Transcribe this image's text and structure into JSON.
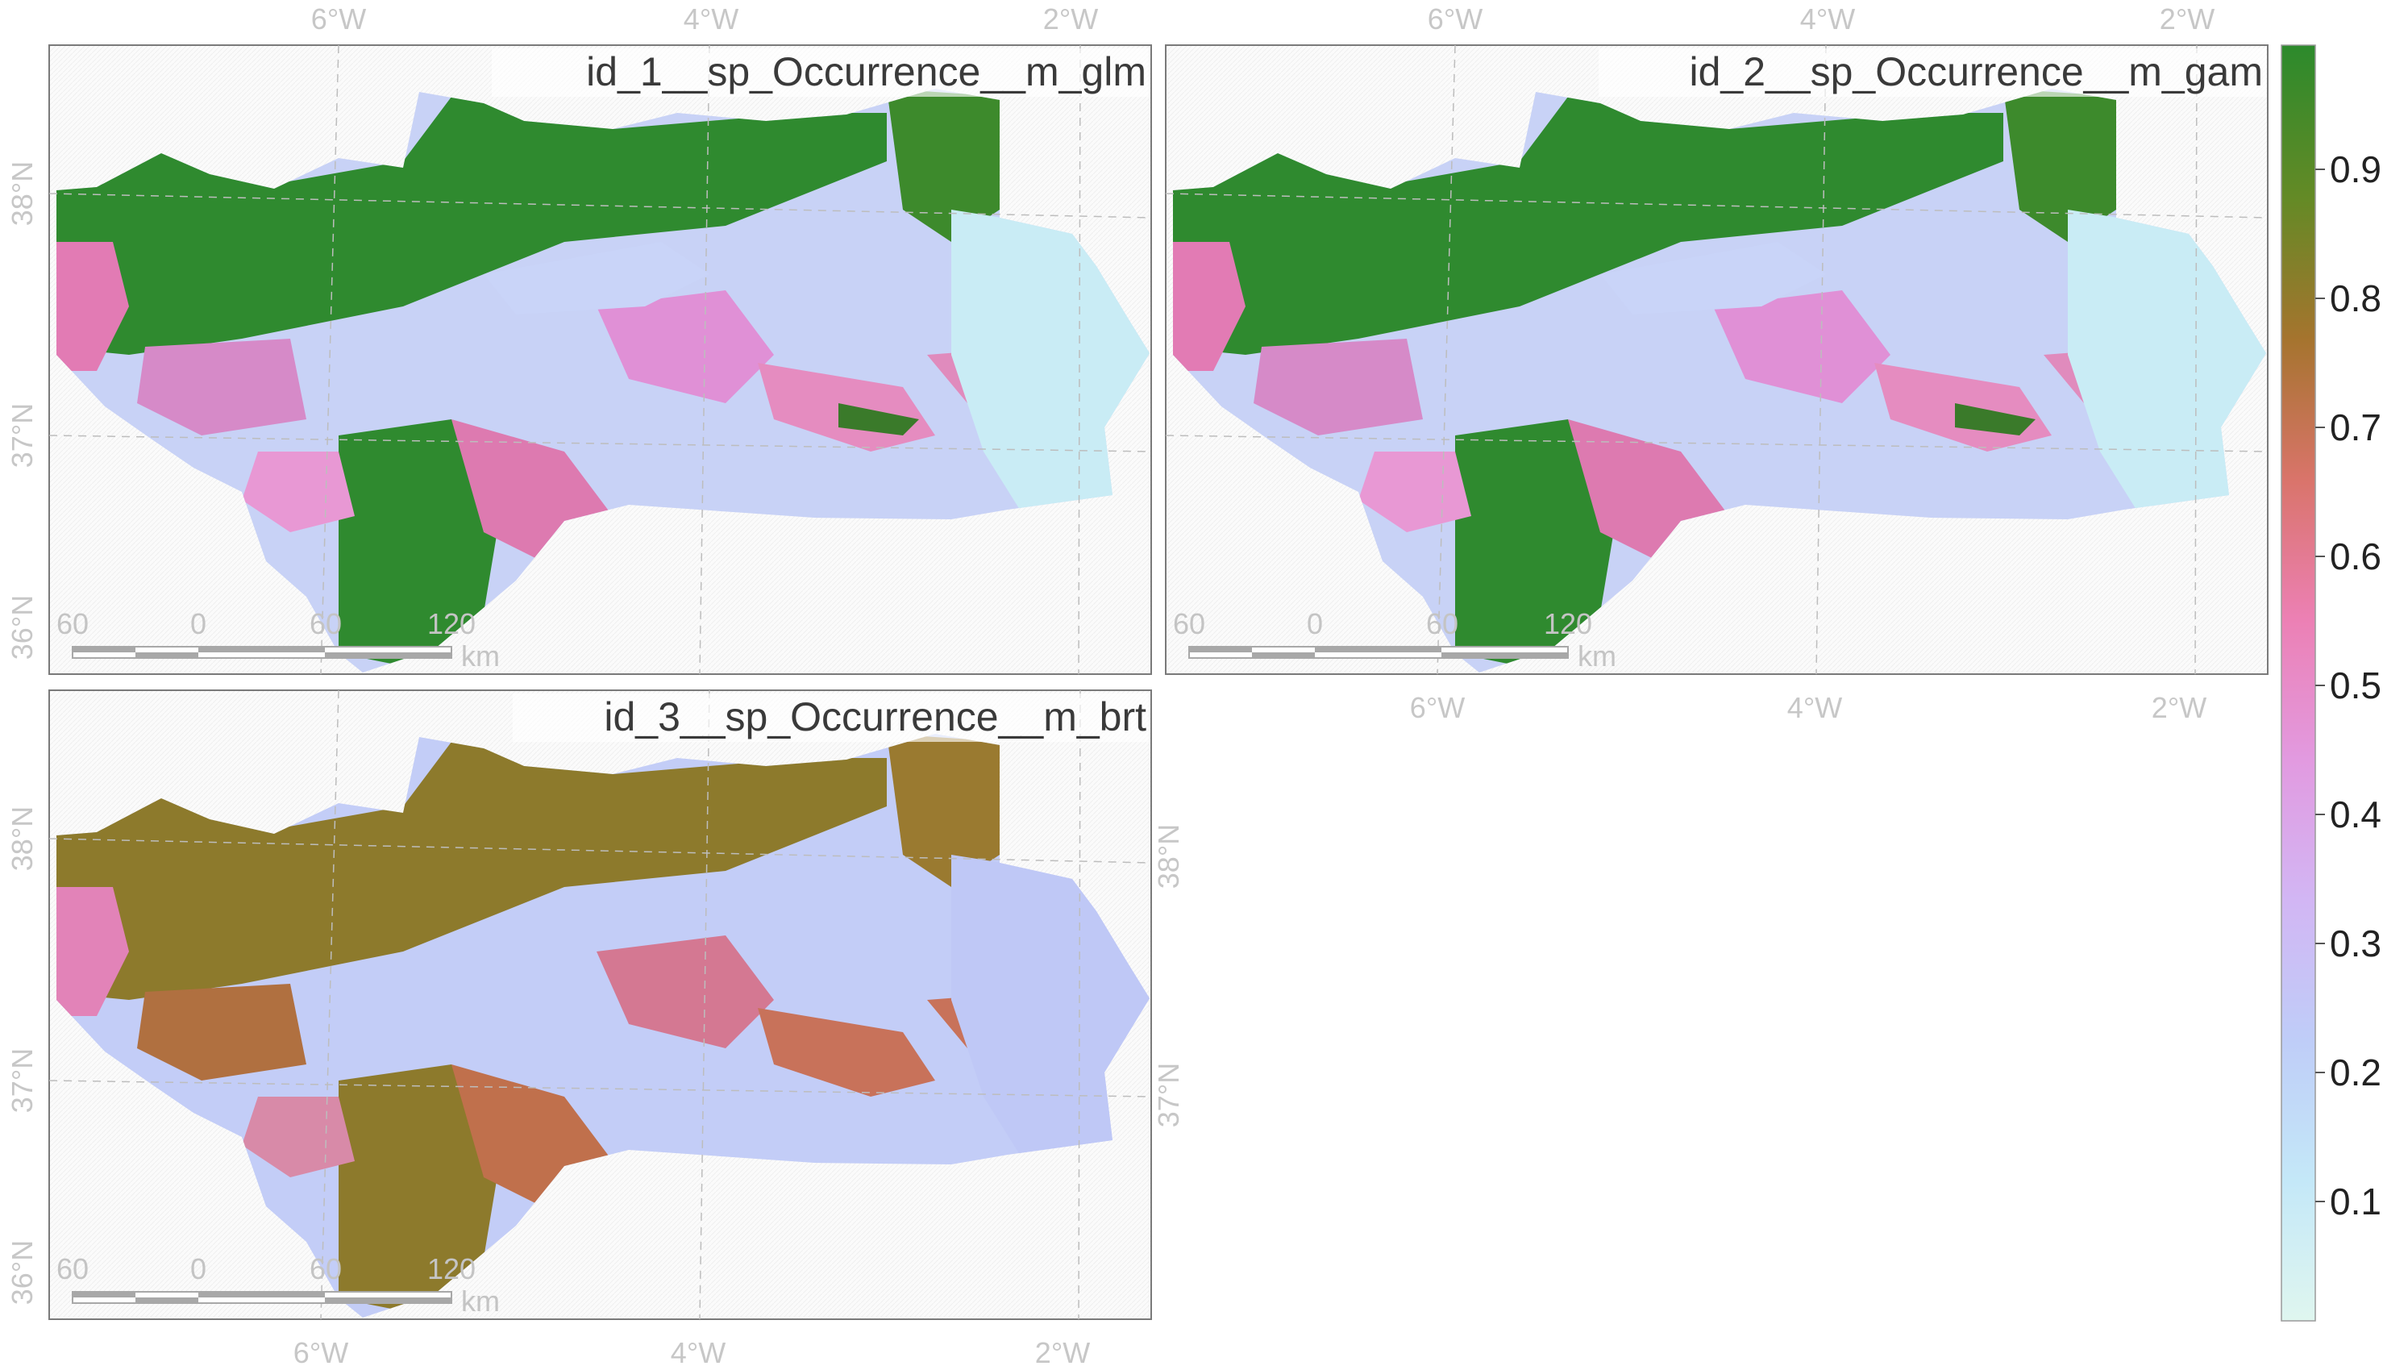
{
  "panels": [
    {
      "title": "id_1__sp_Occurrence__m_glm",
      "top_axis": [
        "6°W",
        "4°W",
        "2°W"
      ],
      "left_axis": [
        "38°N",
        "37°N",
        "36°N"
      ],
      "scale_bar": {
        "ticks": [
          "60",
          "0",
          "60",
          "120"
        ],
        "unit": "km"
      },
      "palette_max": "#2e8a2e"
    },
    {
      "title": "id_2__sp_Occurrence__m_gam",
      "top_axis": [
        "6°W",
        "4°W",
        "2°W"
      ],
      "bottom_axis": [
        "6°W",
        "4°W",
        "2°W"
      ],
      "scale_bar": {
        "ticks": [
          "60",
          "0",
          "60",
          "120"
        ],
        "unit": "km"
      },
      "palette_max": "#2e8a2e"
    },
    {
      "title": "id_3__sp_Occurrence__m_brt",
      "left_axis": [
        "38°N",
        "37°N",
        "36°N"
      ],
      "right_axis": [
        "38°N",
        "37°N"
      ],
      "bottom_axis": [
        "6°W",
        "4°W",
        "2°W"
      ],
      "scale_bar": {
        "ticks": [
          "60",
          "0",
          "60",
          "120"
        ],
        "unit": "km"
      },
      "palette_max": "#8a7a2a"
    }
  ],
  "legend": {
    "labels": [
      "0.9",
      "0.8",
      "0.7",
      "0.6",
      "0.5",
      "0.4",
      "0.3",
      "0.2",
      "0.1"
    ],
    "colors": [
      "#dff6ef",
      "#c4e8f8",
      "#bfcdf8",
      "#d2b6f4",
      "#e29ae0",
      "#ec80b4",
      "#d9746a",
      "#a5742e",
      "#648a26",
      "#2c8a2c"
    ]
  }
}
